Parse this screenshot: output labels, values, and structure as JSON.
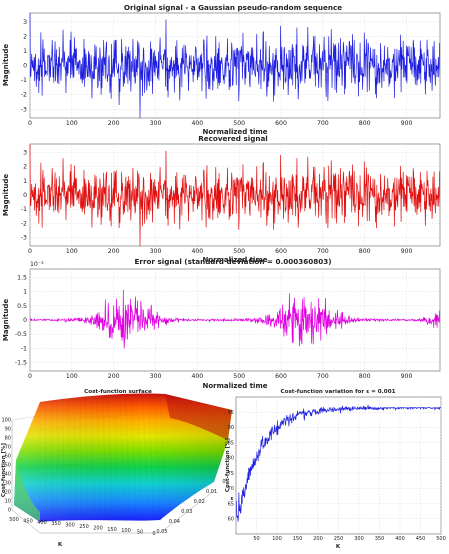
{
  "chart_data": [
    {
      "type": "line",
      "title": "Original signal - a Gaussian pseudo-random sequence",
      "xlabel": "Normalized time",
      "ylabel": "Magnitude",
      "xlim": [
        0,
        980
      ],
      "ylim": [
        -3.6,
        3.6
      ],
      "xticks": [
        0,
        100,
        200,
        300,
        400,
        500,
        600,
        700,
        800,
        900
      ],
      "yticks": [
        -3,
        -2,
        -1,
        0,
        1,
        2,
        3
      ],
      "series": [
        {
          "color": "#1f1fe0",
          "amplitude": 1.0,
          "envelope": "stationary"
        }
      ],
      "grid": true
    },
    {
      "type": "line",
      "title": "Recovered signal",
      "xlabel": "Normalized time",
      "ylabel": "Magnitude",
      "xlim": [
        0,
        980
      ],
      "ylim": [
        -3.6,
        3.6
      ],
      "xticks": [
        0,
        100,
        200,
        300,
        400,
        500,
        600,
        700,
        800,
        900
      ],
      "yticks": [
        -3,
        -2,
        -1,
        0,
        1,
        2,
        3
      ],
      "series": [
        {
          "color": "#e01010",
          "amplitude": 1.0,
          "envelope": "stationary"
        }
      ],
      "grid": true
    },
    {
      "type": "line",
      "title": "Error signal (standard deviation = 0.000360803)",
      "exponent_label": "10⁻³",
      "xlabel": "Normalized time",
      "ylabel": "Magnitude",
      "xlim": [
        0,
        980
      ],
      "ylim": [
        -1.8,
        1.8
      ],
      "xticks": [
        0,
        100,
        200,
        300,
        400,
        500,
        600,
        700,
        800,
        900
      ],
      "yticks": [
        -1.5,
        -1,
        -0.5,
        0,
        0.5,
        1,
        1.5
      ],
      "series": [
        {
          "color": "#e000e0",
          "amplitude": 0.45,
          "envelope": "bursts"
        }
      ],
      "grid": true
    },
    {
      "type": "surface",
      "title": "Cost-function surface",
      "xlabel": "K",
      "ylabel": "ε",
      "zlabel": "Cost-function [%]",
      "k_ticks": [
        0,
        50,
        100,
        150,
        200,
        250,
        300,
        350,
        400,
        450,
        500
      ],
      "eps_ticks": [
        0,
        0.01,
        0.02,
        0.03,
        0.04,
        0.05
      ],
      "zlim": [
        0,
        100
      ],
      "zticks": [
        0,
        10,
        20,
        30,
        40,
        50,
        60,
        70,
        80,
        90,
        100
      ]
    },
    {
      "type": "line",
      "title": "Cost-function variation for ε = 0.001",
      "xlabel": "K",
      "ylabel": "Cost-function [%]",
      "xlim": [
        0,
        500
      ],
      "ylim": [
        55,
        100
      ],
      "xticks": [
        50,
        100,
        150,
        200,
        250,
        300,
        350,
        400,
        450,
        500
      ],
      "yticks": [
        60,
        65,
        70,
        75,
        80,
        85,
        90,
        95
      ],
      "series": [
        {
          "color": "#1f1fe0",
          "start": 57,
          "plateau": 96.5
        }
      ],
      "grid": true
    }
  ]
}
